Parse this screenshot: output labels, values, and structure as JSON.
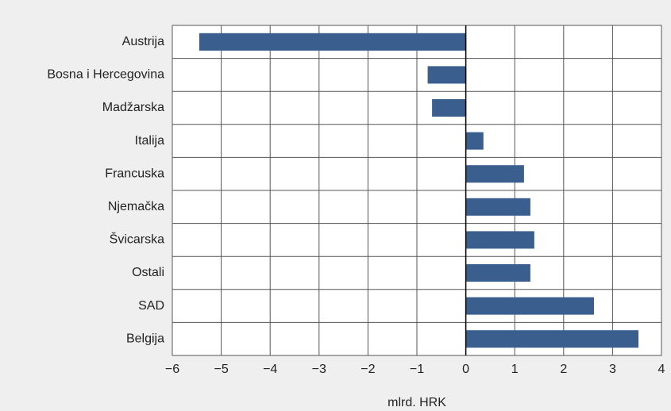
{
  "chart_data": {
    "type": "barh",
    "categories": [
      "Austrija",
      "Bosna i Hercegovina",
      "Madžarska",
      "Italija",
      "Francuska",
      "Njemačka",
      "Švicarska",
      "Ostali",
      "SAD",
      "Belgija"
    ],
    "values": [
      -5.45,
      -0.78,
      -0.69,
      0.36,
      1.19,
      1.32,
      1.4,
      1.32,
      2.62,
      3.53
    ],
    "color": "#3a5f8f",
    "xlabel": "mlrd. HRK",
    "xlim": [
      -6,
      4
    ],
    "xticks": [
      {
        "value": -6,
        "label": "−6"
      },
      {
        "value": -5,
        "label": "−5"
      },
      {
        "value": -4,
        "label": "−4"
      },
      {
        "value": -3,
        "label": "−3"
      },
      {
        "value": -2,
        "label": "−2"
      },
      {
        "value": -1,
        "label": "−1"
      },
      0,
      1,
      2,
      3,
      4
    ],
    "grid": true
  }
}
